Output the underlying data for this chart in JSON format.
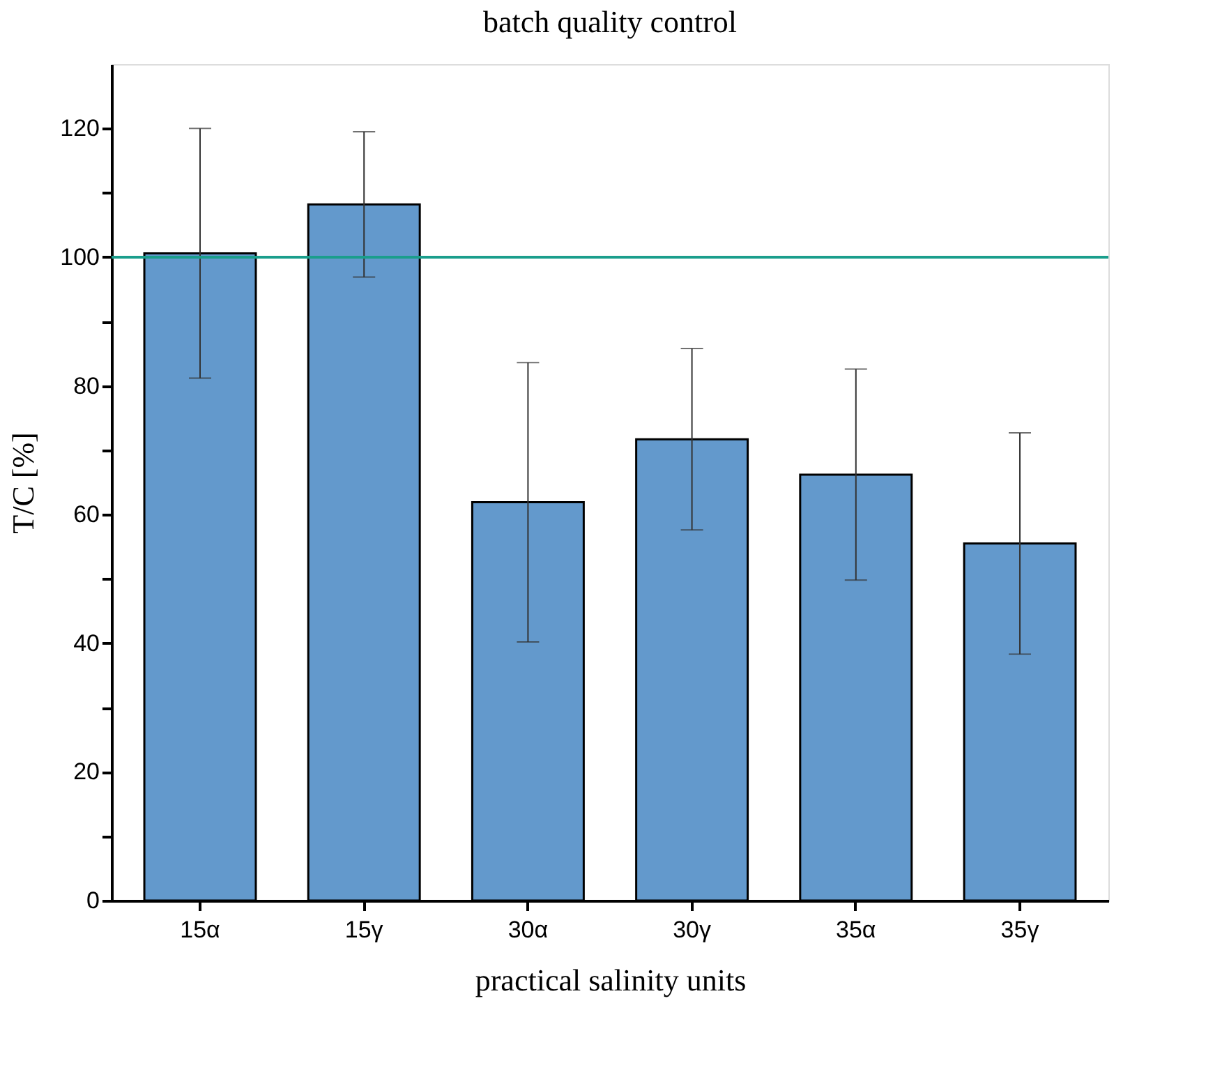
{
  "chart_data": {
    "type": "bar",
    "title": "batch quality control",
    "xlabel": "practical salinity units",
    "ylabel": "T/C [%]",
    "categories": [
      "15α",
      "15γ",
      "30α",
      "30γ",
      "35α",
      "35γ"
    ],
    "values": [
      100.6,
      108.2,
      61.9,
      71.7,
      66.2,
      55.5
    ],
    "errors": [
      19.4,
      11.3,
      21.7,
      14.1,
      16.4,
      17.2
    ],
    "color": "#6399cc",
    "ylim": [
      0,
      130
    ],
    "yticks": [
      0,
      {
        "value": 10,
        "label": null
      },
      20,
      {
        "value": 30,
        "label": null
      },
      40,
      {
        "value": 50,
        "label": null
      },
      60,
      {
        "value": 70,
        "label": null
      },
      80,
      {
        "value": 90,
        "label": null
      },
      100,
      {
        "value": 110,
        "label": null
      },
      120
    ],
    "ref_lines": [
      {
        "axis": "y",
        "value": 100,
        "color": "#1a9e8c"
      }
    ],
    "grid": false
  }
}
